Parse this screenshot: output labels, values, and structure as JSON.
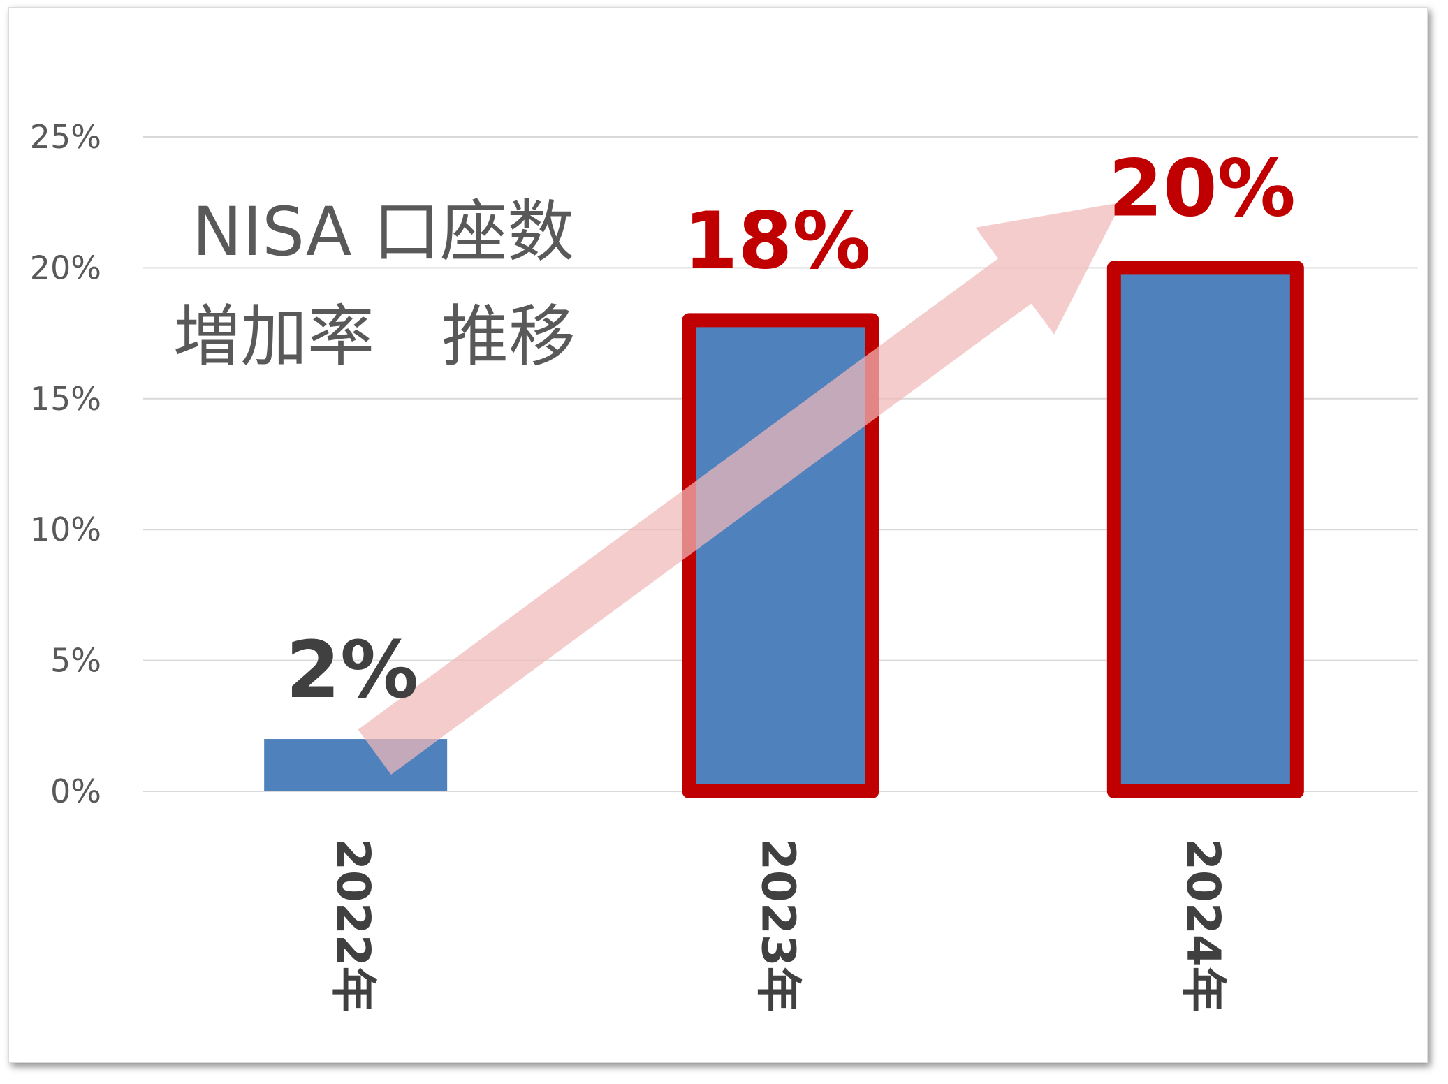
{
  "chart_data": {
    "type": "bar",
    "title_lines": [
      "NISA 口座数",
      "増加率　推移"
    ],
    "categories": [
      "2022年",
      "2023年",
      "2024年"
    ],
    "values": [
      2,
      18,
      20
    ],
    "data_labels": [
      "2%",
      "18%",
      "20%"
    ],
    "highlighted": [
      false,
      true,
      true
    ],
    "ylim": [
      0,
      25
    ],
    "yticks": [
      0,
      5,
      10,
      15,
      20,
      25
    ],
    "ytick_labels": [
      "0%",
      "5%",
      "10%",
      "15%",
      "20%",
      "25%"
    ],
    "grid": true,
    "xlabel": "",
    "ylabel": "",
    "colors": {
      "bar_fill": "#4f81bd",
      "highlight_border": "#c00000",
      "normal_label": "#404040",
      "highlight_label": "#c00000",
      "trend_arrow": "#f0b8b8",
      "grid": "#d9d9d9"
    },
    "annotations": [
      {
        "type": "arrow",
        "meaning": "upward trend from 2022 to 2024"
      }
    ]
  }
}
